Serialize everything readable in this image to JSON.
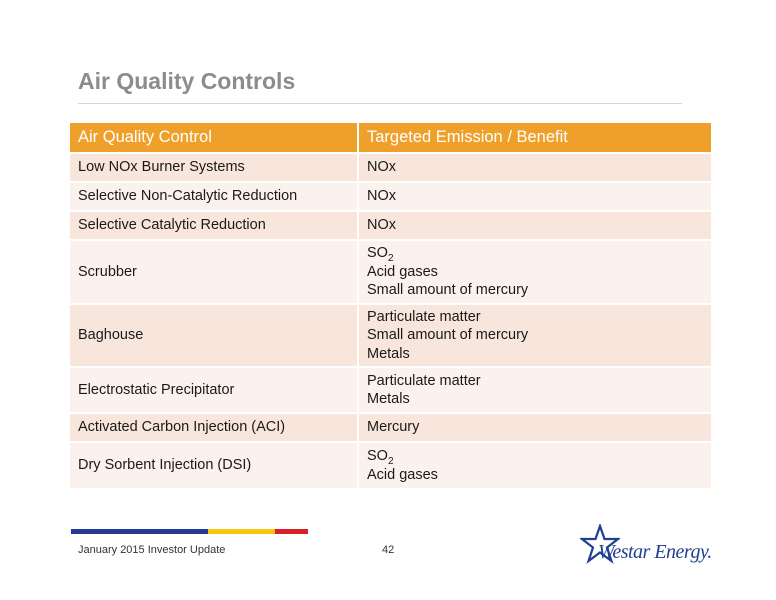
{
  "slide": {
    "title": "Air Quality Controls"
  },
  "table": {
    "headers": [
      "Air Quality Control",
      "Targeted Emission / Benefit"
    ],
    "rows": [
      {
        "control": "Low NOx Burner Systems",
        "benefits": [
          "NOx"
        ]
      },
      {
        "control": "Selective Non-Catalytic Reduction",
        "benefits": [
          "NOx"
        ]
      },
      {
        "control": "Selective Catalytic Reduction",
        "benefits": [
          "NOx"
        ]
      },
      {
        "control": "Scrubber",
        "benefits": [
          "SO",
          "Acid gases",
          "Small amount of mercury"
        ],
        "so2_subscript": "2"
      },
      {
        "control": "Baghouse",
        "benefits": [
          "Particulate matter",
          "Small amount of mercury",
          "Metals"
        ]
      },
      {
        "control": "Electrostatic Precipitator",
        "benefits": [
          "Particulate matter",
          "Metals"
        ]
      },
      {
        "control": "Activated Carbon Injection (ACI)",
        "benefits": [
          "Mercury"
        ]
      },
      {
        "control": "Dry Sorbent Injection (DSI)",
        "benefits": [
          "SO",
          "Acid gases"
        ],
        "so2_subscript": "2"
      }
    ]
  },
  "footer": {
    "text": "January 2015 Investor Update",
    "page_number": "42",
    "logo_text": "Westar Energy."
  },
  "colors": {
    "header_orange": "#efa02b",
    "row_dark": "#f8e6dc",
    "row_light": "#fcf2ed",
    "stripe_blue": "#27369a",
    "stripe_yellow": "#f6c80b",
    "stripe_red": "#d9202a",
    "logo_blue": "#1f3f8f"
  },
  "icons": {
    "logo_mark": "star-icon"
  }
}
